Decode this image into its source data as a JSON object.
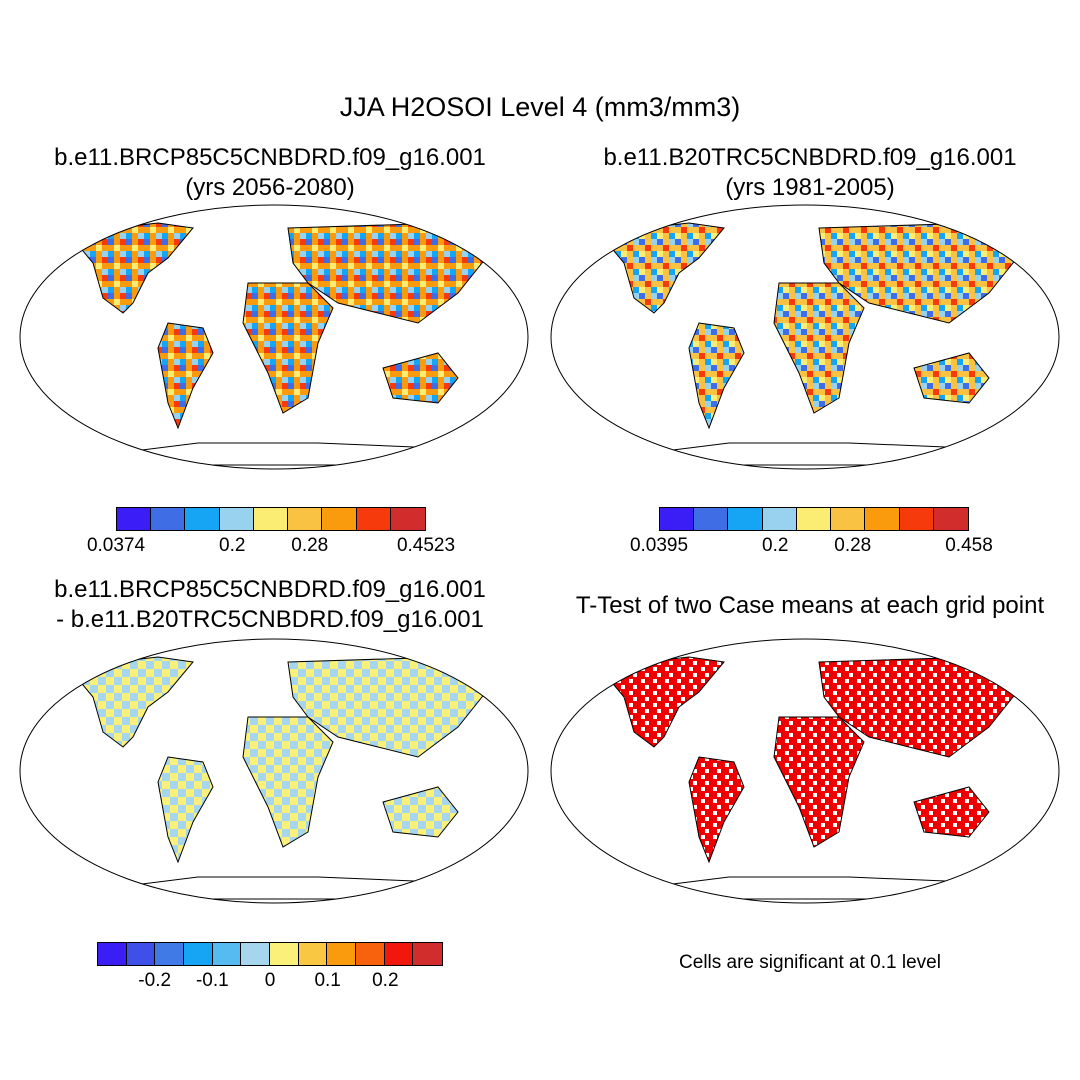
{
  "title": "JJA H2OSOI Level 4 (mm3/mm3)",
  "panels": [
    {
      "line1": "b.e11.BRCP85C5CNBDRD.f09_g16.001",
      "line2": "(yrs 2056-2080)",
      "colorbar": {
        "colors": [
          "#3a1ef5",
          "#3f6de6",
          "#16a4f4",
          "#99d2ee",
          "#fbed73",
          "#f9c242",
          "#f99b0c",
          "#f73a0c",
          "#d12d2c"
        ],
        "labels": [
          "0.0374",
          "0.2",
          "0.28",
          "0.4523"
        ],
        "label_positions": [
          0,
          0.375,
          0.625,
          1
        ]
      }
    },
    {
      "line1": "b.e11.B20TRC5CNBDRD.f09_g16.001",
      "line2": "(yrs 1981-2005)",
      "colorbar": {
        "colors": [
          "#3a1ef5",
          "#3f6de6",
          "#16a4f4",
          "#99d2ee",
          "#fbed73",
          "#f9c242",
          "#f99b0c",
          "#f73a0c",
          "#d12d2c"
        ],
        "labels": [
          "0.0395",
          "0.2",
          "0.28",
          "0.458"
        ],
        "label_positions": [
          0,
          0.375,
          0.625,
          1
        ]
      }
    },
    {
      "line1": "b.e11.BRCP85C5CNBDRD.f09_g16.001",
      "line2": "- b.e11.B20TRC5CNBDRD.f09_g16.001",
      "colorbar": {
        "colors": [
          "#3a1ef5",
          "#3f50ea",
          "#3f7ae6",
          "#16a4f4",
          "#56bbf1",
          "#a6d6ee",
          "#fbf17a",
          "#f9c742",
          "#f99b0c",
          "#f8620c",
          "#f2170c",
          "#d12d2c"
        ],
        "labels": [
          "-0.2",
          "-0.1",
          "0",
          "0.1",
          "0.2"
        ],
        "label_positions": [
          0.1667,
          0.3333,
          0.5,
          0.6667,
          0.8333
        ]
      }
    },
    {
      "line1": "T-Test of two Case means at each grid point",
      "note": "Cells are significant at 0.1 level",
      "significance_color": "#ee0000"
    }
  ]
}
